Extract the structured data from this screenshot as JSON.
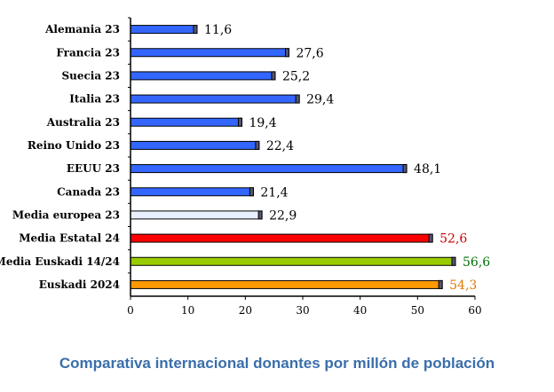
{
  "chart_data": {
    "type": "bar",
    "orientation": "horizontal",
    "categories": [
      "Alemania 23",
      "Francia 23",
      "Suecia 23",
      "Italia 23",
      "Australia 23",
      "Reino Unido 23",
      "EEUU 23",
      "Canada 23",
      "Media europea 23",
      "Media Estatal 24",
      "Media Euskadi 14/24",
      "Euskadi 2024"
    ],
    "values": [
      11.6,
      27.6,
      25.2,
      29.4,
      19.4,
      22.4,
      48.1,
      21.4,
      22.9,
      52.6,
      56.6,
      54.3
    ],
    "value_labels": [
      "11,6",
      "27,6",
      "25,2",
      "29,4",
      "19,4",
      "22,4",
      "48,1",
      "21,4",
      "22,9",
      "52,6",
      "56,6",
      "54,3"
    ],
    "colors": [
      "#3366ff",
      "#3366ff",
      "#3366ff",
      "#3366ff",
      "#3366ff",
      "#3366ff",
      "#3366ff",
      "#3366ff",
      "#e8f0ff",
      "#ff0000",
      "#99cc00",
      "#ff9900"
    ],
    "label_colors": [
      "#000000",
      "#000000",
      "#000000",
      "#000000",
      "#000000",
      "#000000",
      "#000000",
      "#000000",
      "#000000",
      "#cc0000",
      "#007000",
      "#e07800"
    ],
    "x_ticks": [
      "0",
      "10",
      "20",
      "30",
      "40",
      "50",
      "60"
    ],
    "xlim": [
      0,
      60
    ],
    "title": "Comparativa internacional donantes por millón de población",
    "grid": false
  }
}
